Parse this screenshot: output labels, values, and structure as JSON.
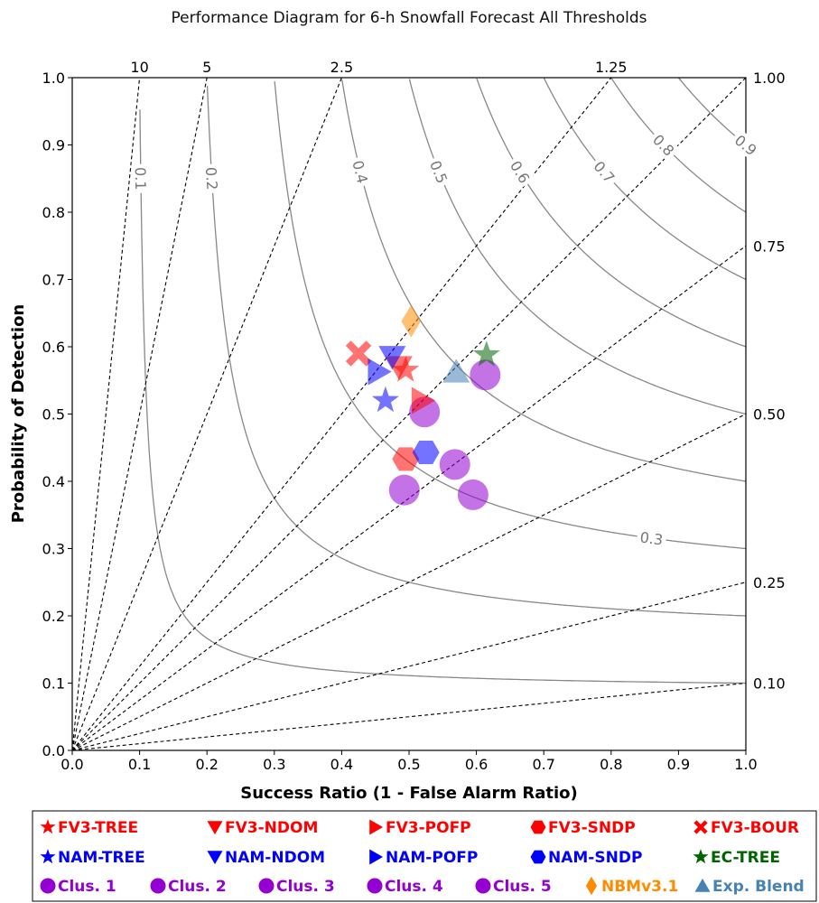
{
  "chart_data": {
    "type": "scatter",
    "title": "Performance Diagram for 6-h Snowfall Forecast All Thresholds",
    "xlabel": "Success Ratio (1 - False Alarm Ratio)",
    "ylabel": "Probability of Detection",
    "xlim": [
      0,
      1
    ],
    "ylim": [
      0,
      1
    ],
    "x_ticks": [
      "0.0",
      "0.1",
      "0.2",
      "0.3",
      "0.4",
      "0.5",
      "0.6",
      "0.7",
      "0.8",
      "0.9",
      "1.0"
    ],
    "y_ticks": [
      "0.0",
      "0.1",
      "0.2",
      "0.3",
      "0.4",
      "0.5",
      "0.6",
      "0.7",
      "0.8",
      "0.9",
      "1.0"
    ],
    "bias_lines": [
      {
        "value": 10,
        "label": "10"
      },
      {
        "value": 5,
        "label": "5"
      },
      {
        "value": 2.5,
        "label": "2.5"
      },
      {
        "value": 1.25,
        "label": "1.25"
      },
      {
        "value": 1.0,
        "label": "1.00"
      },
      {
        "value": 0.75,
        "label": "0.75"
      },
      {
        "value": 0.5,
        "label": "0.50"
      },
      {
        "value": 0.25,
        "label": "0.25"
      },
      {
        "value": 0.1,
        "label": "0.10"
      }
    ],
    "csi_lines": [
      {
        "value": 0.1,
        "label": "0.1"
      },
      {
        "value": 0.2,
        "label": "0.2"
      },
      {
        "value": 0.3,
        "label": "0.3"
      },
      {
        "value": 0.4,
        "label": "0.4"
      },
      {
        "value": 0.5,
        "label": "0.5"
      },
      {
        "value": 0.6,
        "label": "0.6"
      },
      {
        "value": 0.7,
        "label": "0.7"
      },
      {
        "value": 0.8,
        "label": "0.8"
      },
      {
        "value": 0.9,
        "label": "0.9"
      }
    ],
    "series": [
      {
        "name": "FV3-TREE",
        "marker": "star",
        "color": "#ff0000",
        "x": 0.495,
        "y": 0.565
      },
      {
        "name": "FV3-NDOM",
        "marker": "triangle-down",
        "color": "#ff0000",
        "x": 0.485,
        "y": 0.57
      },
      {
        "name": "FV3-POFP",
        "marker": "triangle-right",
        "color": "#ff0000",
        "x": 0.52,
        "y": 0.52
      },
      {
        "name": "FV3-SNDP",
        "marker": "hexagon",
        "color": "#ff0000",
        "x": 0.495,
        "y": 0.433
      },
      {
        "name": "FV3-BOUR",
        "marker": "x",
        "color": "#ff0000",
        "x": 0.425,
        "y": 0.59
      },
      {
        "name": "NAM-TREE",
        "marker": "star",
        "color": "#0000ff",
        "x": 0.465,
        "y": 0.52
      },
      {
        "name": "NAM-NDOM",
        "marker": "triangle-down",
        "color": "#0000ff",
        "x": 0.475,
        "y": 0.585
      },
      {
        "name": "NAM-POFP",
        "marker": "triangle-right",
        "color": "#0000ff",
        "x": 0.455,
        "y": 0.563
      },
      {
        "name": "NAM-SNDP",
        "marker": "hexagon",
        "color": "#0000ff",
        "x": 0.525,
        "y": 0.443
      },
      {
        "name": "EC-TREE",
        "marker": "star",
        "color": "#006400",
        "x": 0.615,
        "y": 0.588
      },
      {
        "name": "Clus. 1",
        "marker": "circle",
        "color": "#9400d3",
        "x": 0.493,
        "y": 0.387
      },
      {
        "name": "Clus. 2",
        "marker": "circle",
        "color": "#9400d3",
        "x": 0.523,
        "y": 0.503
      },
      {
        "name": "Clus. 3",
        "marker": "circle",
        "color": "#9400d3",
        "x": 0.568,
        "y": 0.425
      },
      {
        "name": "Clus. 4",
        "marker": "circle",
        "color": "#9400d3",
        "x": 0.595,
        "y": 0.38
      },
      {
        "name": "Clus. 5",
        "marker": "circle",
        "color": "#9400d3",
        "x": 0.613,
        "y": 0.558
      },
      {
        "name": "NBMv3.1",
        "marker": "diamond",
        "color": "#ff8c00",
        "x": 0.503,
        "y": 0.638
      },
      {
        "name": "Exp. Blend",
        "marker": "triangle-up",
        "color": "#4682b4",
        "x": 0.57,
        "y": 0.563
      }
    ],
    "legend": {
      "placement": "bottom",
      "rows": [
        [
          {
            "label": "FV3-TREE",
            "marker": "star",
            "color": "#ff0000"
          },
          {
            "label": "FV3-NDOM",
            "marker": "triangle-down",
            "color": "#ff0000"
          },
          {
            "label": "FV3-POFP",
            "marker": "triangle-right",
            "color": "#ff0000"
          },
          {
            "label": "FV3-SNDP",
            "marker": "hexagon",
            "color": "#ff0000"
          },
          {
            "label": "FV3-BOUR",
            "marker": "x",
            "color": "#ff0000"
          }
        ],
        [
          {
            "label": "NAM-TREE",
            "marker": "star",
            "color": "#0000ff"
          },
          {
            "label": "NAM-NDOM",
            "marker": "triangle-down",
            "color": "#0000ff"
          },
          {
            "label": "NAM-POFP",
            "marker": "triangle-right",
            "color": "#0000ff"
          },
          {
            "label": "NAM-SNDP",
            "marker": "hexagon",
            "color": "#0000ff"
          },
          {
            "label": "EC-TREE",
            "marker": "star",
            "color": "#006400"
          }
        ],
        [
          {
            "label": "Clus. 1",
            "marker": "circle",
            "color": "#9400d3"
          },
          {
            "label": "Clus. 2",
            "marker": "circle",
            "color": "#9400d3"
          },
          {
            "label": "Clus. 3",
            "marker": "circle",
            "color": "#9400d3"
          },
          {
            "label": "Clus. 4",
            "marker": "circle",
            "color": "#9400d3"
          },
          {
            "label": "Clus. 5",
            "marker": "circle",
            "color": "#9400d3"
          },
          {
            "label": "NBMv3.1",
            "marker": "diamond",
            "color": "#ff8c00"
          },
          {
            "label": "Exp. Blend",
            "marker": "triangle-up",
            "color": "#4682b4"
          }
        ]
      ]
    }
  }
}
